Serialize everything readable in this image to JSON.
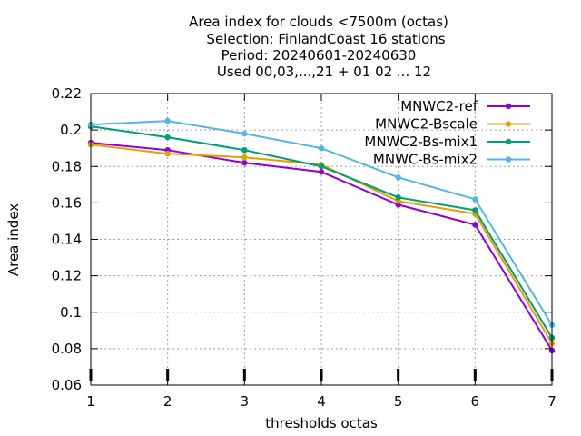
{
  "chart_data": {
    "type": "line",
    "title_lines": [
      "Area index  for clouds <7500m (octas)",
      "Selection: FinlandCoast      16 stations",
      "Period: 20240601-20240630",
      "Used 00,03,...,21 + 01 02 ... 12"
    ],
    "xlabel": "thresholds octas",
    "ylabel": "Area index",
    "x": [
      1,
      2,
      3,
      4,
      5,
      6,
      7
    ],
    "xlim": [
      1,
      7
    ],
    "ylim": [
      0.06,
      0.22
    ],
    "xticks": [
      "1",
      "2",
      "3",
      "4",
      "5",
      "6",
      "7"
    ],
    "yticks": [
      "0.06",
      "0.08",
      "0.1",
      "0.12",
      "0.14",
      "0.16",
      "0.18",
      "0.2",
      "0.22"
    ],
    "grid": true,
    "legend_position": "top-right",
    "series": [
      {
        "name": "MNWC2-ref",
        "color": "#9400d3",
        "values": [
          0.193,
          0.189,
          0.182,
          0.177,
          0.159,
          0.148,
          0.079
        ]
      },
      {
        "name": "MNWC2-Bscale",
        "color": "#e69f00",
        "values": [
          0.192,
          0.187,
          0.185,
          0.181,
          0.161,
          0.154,
          0.083
        ]
      },
      {
        "name": "MNWC2-Bs-mix1",
        "color": "#009e73",
        "values": [
          0.202,
          0.196,
          0.189,
          0.18,
          0.163,
          0.156,
          0.086
        ]
      },
      {
        "name": "MNWC-Bs-mix2",
        "color": "#56b4e9",
        "values": [
          0.203,
          0.205,
          0.198,
          0.19,
          0.174,
          0.162,
          0.093
        ]
      }
    ]
  }
}
